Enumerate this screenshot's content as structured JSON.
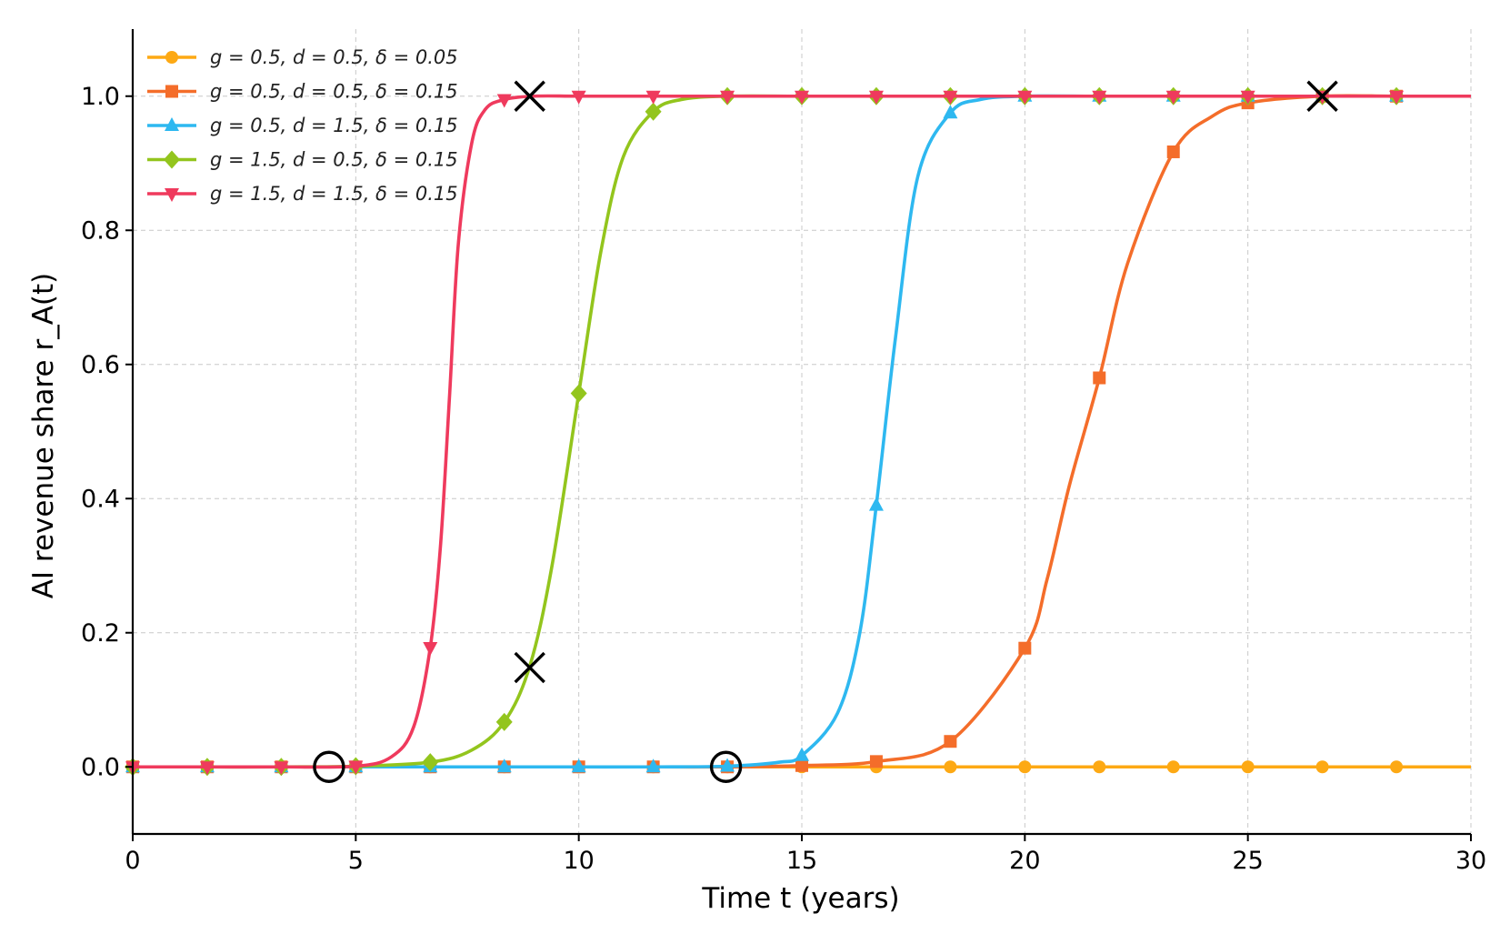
{
  "chart_data": {
    "type": "line",
    "xlabel": "Time t (years)",
    "ylabel": "AI revenue share r_A(t)",
    "xlim": [
      0,
      30
    ],
    "ylim": [
      -0.1,
      1.1
    ],
    "xticks": [
      "0",
      "5",
      "10",
      "15",
      "20",
      "25",
      "30"
    ],
    "yticks": [
      "0.0",
      "0.2",
      "0.4",
      "0.6",
      "0.8",
      "1.0"
    ],
    "grid": true,
    "legend_position": "top-left",
    "series": [
      {
        "name": "g = 0.5, d = 0.5, δ = 0.05",
        "color": "#FDA914",
        "marker": "circle",
        "x": [
          0,
          1.67,
          3.33,
          5,
          6.67,
          8.33,
          10,
          11.67,
          13.33,
          15,
          16.67,
          18.33,
          20,
          21.67,
          23.33,
          25,
          26.67,
          28.33,
          30
        ],
        "y": [
          0,
          0,
          0,
          0,
          0,
          0,
          0,
          0,
          0,
          0,
          0,
          0,
          0,
          0,
          0,
          0,
          0,
          0,
          0
        ]
      },
      {
        "name": "g = 0.5, d = 0.5, δ = 0.15",
        "color": "#F46D2A",
        "marker": "square",
        "x": [
          0,
          1.67,
          3.33,
          5,
          6.67,
          8.33,
          10,
          11.67,
          13.33,
          15,
          16.67,
          18.33,
          20,
          20.5,
          21,
          21.67,
          22.3,
          23.33,
          24.2,
          25,
          26.67,
          28.33,
          30
        ],
        "y": [
          0,
          0,
          0,
          0,
          0,
          0,
          0,
          0,
          0,
          0.002,
          0.008,
          0.038,
          0.177,
          0.28,
          0.42,
          0.58,
          0.75,
          0.917,
          0.97,
          0.99,
          1.0,
          1.0,
          1.0
        ]
      },
      {
        "name": "g = 0.5, d = 1.5, δ = 0.15",
        "color": "#2EB8F0",
        "marker": "triangle-up",
        "x": [
          0,
          1.67,
          3.33,
          5,
          6.67,
          8.33,
          10,
          11.67,
          13.33,
          14.5,
          15,
          15.8,
          16.3,
          16.67,
          17.1,
          17.6,
          18.33,
          19,
          20,
          21.67,
          23.33,
          25,
          26.67,
          28.33,
          30
        ],
        "y": [
          0,
          0,
          0,
          0,
          0,
          0,
          0,
          0,
          0.001,
          0.007,
          0.017,
          0.08,
          0.2,
          0.39,
          0.64,
          0.88,
          0.975,
          0.995,
          1.0,
          1.0,
          1.0,
          1.0,
          1.0,
          1.0,
          1.0
        ]
      },
      {
        "name": "g = 1.5, d = 0.5, δ = 0.15",
        "color": "#93C51D",
        "marker": "diamond",
        "x": [
          0,
          1.67,
          3.33,
          5,
          6.67,
          7.6,
          8.33,
          8.9,
          9.4,
          10,
          10.5,
          11,
          11.67,
          12.3,
          13.33,
          15,
          16.67,
          18.33,
          20,
          21.67,
          23.33,
          25,
          26.67,
          28.33,
          30
        ],
        "y": [
          0,
          0,
          0,
          0.001,
          0.007,
          0.025,
          0.067,
          0.15,
          0.3,
          0.557,
          0.77,
          0.91,
          0.977,
          0.995,
          1.0,
          1.0,
          1.0,
          1.0,
          1.0,
          1.0,
          1.0,
          1.0,
          1.0,
          1.0,
          1.0
        ]
      },
      {
        "name": "g = 1.5, d = 1.5, δ = 0.15",
        "color": "#EF3A5D",
        "marker": "triangle-down",
        "x": [
          0,
          1.67,
          3.33,
          5,
          5.8,
          6.3,
          6.67,
          6.9,
          7.1,
          7.3,
          7.6,
          7.9,
          8.33,
          9,
          10,
          11.67,
          13.33,
          15,
          16.67,
          18.33,
          20,
          21.67,
          23.33,
          25,
          26.67,
          28.33,
          30
        ],
        "y": [
          0,
          0,
          0,
          0.001,
          0.015,
          0.06,
          0.178,
          0.33,
          0.55,
          0.78,
          0.93,
          0.98,
          0.995,
          1.0,
          1.0,
          1.0,
          1.0,
          1.0,
          1.0,
          1.0,
          1.0,
          1.0,
          1.0,
          1.0,
          1.0,
          1.0,
          1.0
        ]
      }
    ],
    "annotations": [
      {
        "kind": "cross",
        "x": 8.9,
        "y": 1.0
      },
      {
        "kind": "cross",
        "x": 8.9,
        "y": 0.148
      },
      {
        "kind": "cross",
        "x": 26.67,
        "y": 1.0
      },
      {
        "kind": "circle",
        "x": 4.4,
        "y": 0.0
      },
      {
        "kind": "circle",
        "x": 13.3,
        "y": 0.0
      }
    ]
  }
}
